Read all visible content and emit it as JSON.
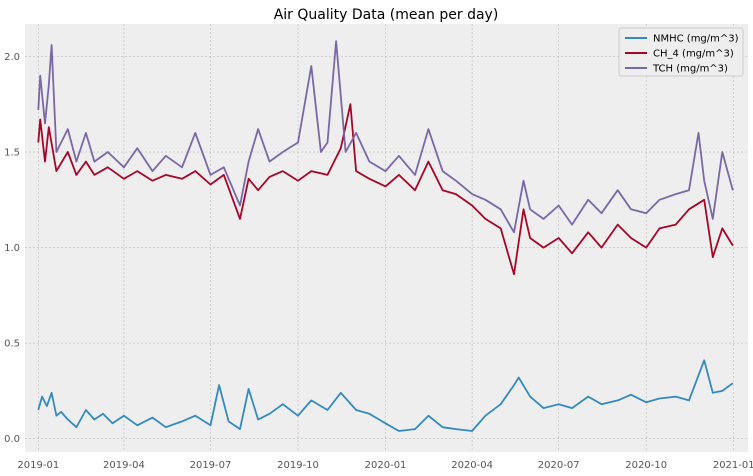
{
  "chart_data": {
    "type": "line",
    "title": "Air Quality Data (mean per day)",
    "xlabel": "",
    "ylabel": "",
    "x_range": [
      "2018-12-18",
      "2021-01-16"
    ],
    "ylim": [
      -0.07,
      2.17
    ],
    "x_ticks": [
      "2019-01",
      "2019-04",
      "2019-07",
      "2019-10",
      "2020-01",
      "2020-04",
      "2020-07",
      "2020-10",
      "2021-01"
    ],
    "x_tick_dates": [
      "2019-01-01",
      "2019-04-01",
      "2019-07-01",
      "2019-10-01",
      "2020-01-01",
      "2020-04-01",
      "2020-07-01",
      "2020-10-01",
      "2021-01-01"
    ],
    "y_ticks": [
      0.0,
      0.5,
      1.0,
      1.5,
      2.0
    ],
    "y_tick_labels": [
      "0.0",
      "0.5",
      "1.0",
      "1.5",
      "2.0"
    ],
    "grid": true,
    "legend_position": "top-right",
    "series": [
      {
        "name": "NMHC (mg/m^3)",
        "color": "#348ABD",
        "points": [
          [
            "2019-01-01",
            0.15
          ],
          [
            "2019-01-05",
            0.22
          ],
          [
            "2019-01-10",
            0.17
          ],
          [
            "2019-01-15",
            0.24
          ],
          [
            "2019-01-20",
            0.12
          ],
          [
            "2019-01-25",
            0.14
          ],
          [
            "2019-02-01",
            0.1
          ],
          [
            "2019-02-10",
            0.06
          ],
          [
            "2019-02-20",
            0.15
          ],
          [
            "2019-03-01",
            0.1
          ],
          [
            "2019-03-10",
            0.13
          ],
          [
            "2019-03-20",
            0.08
          ],
          [
            "2019-04-01",
            0.12
          ],
          [
            "2019-04-15",
            0.07
          ],
          [
            "2019-05-01",
            0.11
          ],
          [
            "2019-05-15",
            0.06
          ],
          [
            "2019-06-01",
            0.09
          ],
          [
            "2019-06-15",
            0.12
          ],
          [
            "2019-07-01",
            0.07
          ],
          [
            "2019-07-10",
            0.28
          ],
          [
            "2019-07-20",
            0.09
          ],
          [
            "2019-08-01",
            0.05
          ],
          [
            "2019-08-10",
            0.26
          ],
          [
            "2019-08-20",
            0.1
          ],
          [
            "2019-09-01",
            0.13
          ],
          [
            "2019-09-15",
            0.18
          ],
          [
            "2019-10-01",
            0.12
          ],
          [
            "2019-10-15",
            0.2
          ],
          [
            "2019-11-01",
            0.15
          ],
          [
            "2019-11-15",
            0.24
          ],
          [
            "2019-12-01",
            0.15
          ],
          [
            "2019-12-15",
            0.13
          ],
          [
            "2020-01-01",
            0.08
          ],
          [
            "2020-01-15",
            0.04
          ],
          [
            "2020-02-01",
            0.05
          ],
          [
            "2020-02-15",
            0.12
          ],
          [
            "2020-03-01",
            0.06
          ],
          [
            "2020-03-15",
            0.05
          ],
          [
            "2020-04-01",
            0.04
          ],
          [
            "2020-04-15",
            0.12
          ],
          [
            "2020-05-01",
            0.18
          ],
          [
            "2020-05-15",
            0.28
          ],
          [
            "2020-05-20",
            0.32
          ],
          [
            "2020-06-01",
            0.22
          ],
          [
            "2020-06-15",
            0.16
          ],
          [
            "2020-07-01",
            0.18
          ],
          [
            "2020-07-15",
            0.16
          ],
          [
            "2020-08-01",
            0.22
          ],
          [
            "2020-08-15",
            0.18
          ],
          [
            "2020-09-01",
            0.2
          ],
          [
            "2020-09-15",
            0.23
          ],
          [
            "2020-10-01",
            0.19
          ],
          [
            "2020-10-15",
            0.21
          ],
          [
            "2020-11-01",
            0.22
          ],
          [
            "2020-11-15",
            0.2
          ],
          [
            "2020-12-01",
            0.41
          ],
          [
            "2020-12-10",
            0.24
          ],
          [
            "2020-12-20",
            0.25
          ],
          [
            "2020-12-31",
            0.29
          ]
        ]
      },
      {
        "name": "CH_4 (mg/m^3)",
        "color": "#A60628",
        "points": [
          [
            "2019-01-01",
            1.55
          ],
          [
            "2019-01-03",
            1.67
          ],
          [
            "2019-01-08",
            1.45
          ],
          [
            "2019-01-12",
            1.63
          ],
          [
            "2019-01-20",
            1.4
          ],
          [
            "2019-02-01",
            1.5
          ],
          [
            "2019-02-10",
            1.38
          ],
          [
            "2019-02-20",
            1.45
          ],
          [
            "2019-03-01",
            1.38
          ],
          [
            "2019-03-15",
            1.42
          ],
          [
            "2019-04-01",
            1.36
          ],
          [
            "2019-04-15",
            1.4
          ],
          [
            "2019-05-01",
            1.35
          ],
          [
            "2019-05-15",
            1.38
          ],
          [
            "2019-06-01",
            1.36
          ],
          [
            "2019-06-15",
            1.4
          ],
          [
            "2019-07-01",
            1.33
          ],
          [
            "2019-07-15",
            1.38
          ],
          [
            "2019-08-01",
            1.15
          ],
          [
            "2019-08-10",
            1.36
          ],
          [
            "2019-08-20",
            1.3
          ],
          [
            "2019-09-01",
            1.37
          ],
          [
            "2019-09-15",
            1.4
          ],
          [
            "2019-10-01",
            1.35
          ],
          [
            "2019-10-15",
            1.4
          ],
          [
            "2019-11-01",
            1.38
          ],
          [
            "2019-11-15",
            1.52
          ],
          [
            "2019-11-25",
            1.75
          ],
          [
            "2019-12-01",
            1.4
          ],
          [
            "2019-12-15",
            1.36
          ],
          [
            "2020-01-01",
            1.32
          ],
          [
            "2020-01-15",
            1.38
          ],
          [
            "2020-02-01",
            1.3
          ],
          [
            "2020-02-15",
            1.45
          ],
          [
            "2020-03-01",
            1.3
          ],
          [
            "2020-03-15",
            1.28
          ],
          [
            "2020-04-01",
            1.22
          ],
          [
            "2020-04-15",
            1.15
          ],
          [
            "2020-05-01",
            1.1
          ],
          [
            "2020-05-15",
            0.86
          ],
          [
            "2020-05-25",
            1.2
          ],
          [
            "2020-06-01",
            1.05
          ],
          [
            "2020-06-15",
            1.0
          ],
          [
            "2020-07-01",
            1.05
          ],
          [
            "2020-07-15",
            0.97
          ],
          [
            "2020-08-01",
            1.08
          ],
          [
            "2020-08-15",
            1.0
          ],
          [
            "2020-09-01",
            1.12
          ],
          [
            "2020-09-15",
            1.05
          ],
          [
            "2020-10-01",
            1.0
          ],
          [
            "2020-10-15",
            1.1
          ],
          [
            "2020-11-01",
            1.12
          ],
          [
            "2020-11-15",
            1.2
          ],
          [
            "2020-12-01",
            1.25
          ],
          [
            "2020-12-10",
            0.95
          ],
          [
            "2020-12-20",
            1.1
          ],
          [
            "2020-12-31",
            1.01
          ]
        ]
      },
      {
        "name": "TCH (mg/m^3)",
        "color": "#7A68A6",
        "points": [
          [
            "2019-01-01",
            1.72
          ],
          [
            "2019-01-03",
            1.9
          ],
          [
            "2019-01-08",
            1.65
          ],
          [
            "2019-01-12",
            1.85
          ],
          [
            "2019-01-15",
            2.06
          ],
          [
            "2019-01-20",
            1.5
          ],
          [
            "2019-02-01",
            1.62
          ],
          [
            "2019-02-10",
            1.45
          ],
          [
            "2019-02-20",
            1.6
          ],
          [
            "2019-03-01",
            1.45
          ],
          [
            "2019-03-15",
            1.5
          ],
          [
            "2019-04-01",
            1.42
          ],
          [
            "2019-04-15",
            1.52
          ],
          [
            "2019-05-01",
            1.4
          ],
          [
            "2019-05-15",
            1.48
          ],
          [
            "2019-06-01",
            1.42
          ],
          [
            "2019-06-15",
            1.6
          ],
          [
            "2019-07-01",
            1.38
          ],
          [
            "2019-07-15",
            1.42
          ],
          [
            "2019-08-01",
            1.22
          ],
          [
            "2019-08-10",
            1.45
          ],
          [
            "2019-08-20",
            1.62
          ],
          [
            "2019-09-01",
            1.45
          ],
          [
            "2019-09-15",
            1.5
          ],
          [
            "2019-10-01",
            1.55
          ],
          [
            "2019-10-15",
            1.95
          ],
          [
            "2019-10-25",
            1.5
          ],
          [
            "2019-11-01",
            1.55
          ],
          [
            "2019-11-10",
            2.08
          ],
          [
            "2019-11-20",
            1.5
          ],
          [
            "2019-12-01",
            1.6
          ],
          [
            "2019-12-15",
            1.45
          ],
          [
            "2020-01-01",
            1.4
          ],
          [
            "2020-01-15",
            1.48
          ],
          [
            "2020-02-01",
            1.38
          ],
          [
            "2020-02-15",
            1.62
          ],
          [
            "2020-03-01",
            1.4
          ],
          [
            "2020-03-15",
            1.35
          ],
          [
            "2020-04-01",
            1.28
          ],
          [
            "2020-04-15",
            1.25
          ],
          [
            "2020-05-01",
            1.2
          ],
          [
            "2020-05-15",
            1.08
          ],
          [
            "2020-05-25",
            1.35
          ],
          [
            "2020-06-01",
            1.2
          ],
          [
            "2020-06-15",
            1.15
          ],
          [
            "2020-07-01",
            1.22
          ],
          [
            "2020-07-15",
            1.12
          ],
          [
            "2020-08-01",
            1.25
          ],
          [
            "2020-08-15",
            1.18
          ],
          [
            "2020-09-01",
            1.3
          ],
          [
            "2020-09-15",
            1.2
          ],
          [
            "2020-10-01",
            1.18
          ],
          [
            "2020-10-15",
            1.25
          ],
          [
            "2020-11-01",
            1.28
          ],
          [
            "2020-11-15",
            1.3
          ],
          [
            "2020-11-25",
            1.6
          ],
          [
            "2020-12-01",
            1.35
          ],
          [
            "2020-12-10",
            1.15
          ],
          [
            "2020-12-20",
            1.5
          ],
          [
            "2020-12-31",
            1.3
          ]
        ]
      }
    ]
  }
}
